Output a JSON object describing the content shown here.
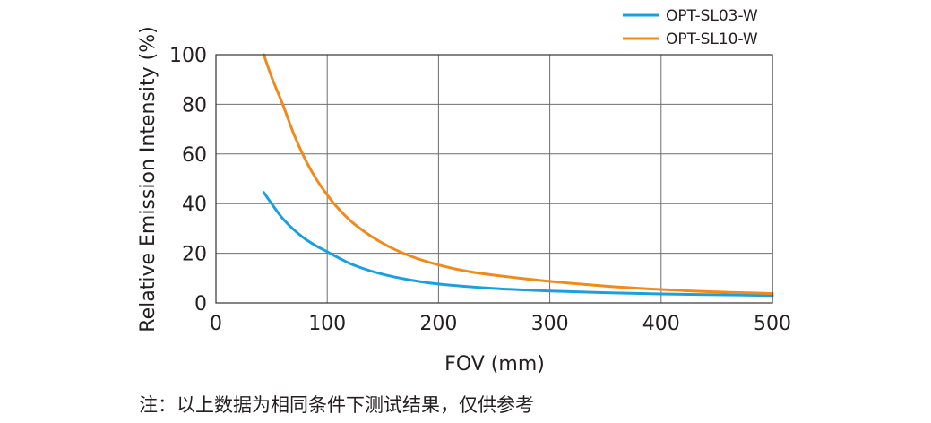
{
  "chart_data": {
    "type": "line",
    "title": "",
    "xlabel": "FOV (mm)",
    "ylabel": "Relative Emission Intensity (%)",
    "xlim": [
      0,
      500
    ],
    "ylim": [
      0,
      100
    ],
    "x_ticks": [
      "0",
      "100",
      "200",
      "300",
      "400",
      "500"
    ],
    "y_ticks": [
      "0",
      "20",
      "40",
      "60",
      "80",
      "100"
    ],
    "grid": true,
    "legend_position": "top-right",
    "series": [
      {
        "name": "OPT-SL03-W",
        "color": "#1aa0dc",
        "x": [
          43,
          50,
          60,
          70,
          80,
          90,
          100,
          110,
          125,
          150,
          175,
          200,
          250,
          300,
          350,
          400,
          450,
          500
        ],
        "y": [
          44.5,
          40.0,
          34.0,
          29.5,
          25.8,
          23.0,
          20.6,
          18.2,
          15.0,
          11.5,
          9.2,
          7.6,
          5.8,
          4.8,
          4.1,
          3.6,
          3.3,
          3.0
        ]
      },
      {
        "name": "OPT-SL10-W",
        "color": "#ef8a1c",
        "x": [
          43,
          50,
          60,
          70,
          80,
          90,
          100,
          110,
          125,
          150,
          175,
          200,
          225,
          250,
          300,
          350,
          400,
          450,
          500
        ],
        "y": [
          100,
          91,
          80,
          68,
          58,
          50,
          43.5,
          38.0,
          31.5,
          24.0,
          18.8,
          15.3,
          12.8,
          11.2,
          8.7,
          6.8,
          5.4,
          4.4,
          3.8
        ]
      }
    ]
  },
  "note": "注：以上数据为相同条件下测试结果，仅供参考"
}
